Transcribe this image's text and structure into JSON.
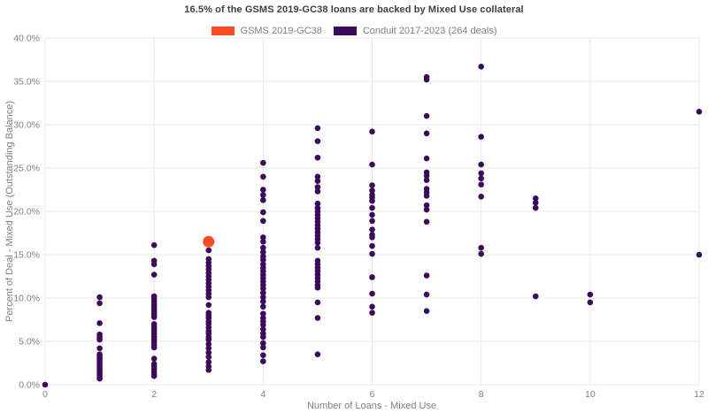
{
  "header": {
    "title": "16.5% of the GSMS 2019-GC38 loans are backed by Mixed Use collateral"
  },
  "legend": {
    "items": [
      {
        "label": "GSMS 2019-GC38",
        "color": "#fb4d23"
      },
      {
        "label": "Conduit 2017-2023 (264 deals)",
        "color": "#3b0a5a"
      }
    ]
  },
  "chart_data": {
    "type": "scatter",
    "title": "16.5% of the GSMS 2019-GC38 loans are backed by Mixed Use collateral",
    "xlabel": "Number of Loans - Mixed Use",
    "ylabel": "Percent of Deal - Mixed Use (Outstanding Balance)",
    "xlim": [
      0,
      12
    ],
    "ylim": [
      0,
      40
    ],
    "xticks": [
      0,
      2,
      4,
      6,
      8,
      10,
      12
    ],
    "yticks": [
      0,
      5,
      10,
      15,
      20,
      25,
      30,
      35,
      40
    ],
    "ytick_suffix": "%",
    "grid": true,
    "grid_color": "#e9e9e9",
    "legend_position": "top",
    "series": [
      {
        "name": "Conduit 2017-2023 (264 deals)",
        "color": "#3b0a5a",
        "marker_radius": 3.3,
        "points": [
          [
            0,
            0.0
          ],
          [
            1,
            10.1
          ],
          [
            1,
            9.4
          ],
          [
            1,
            7.1
          ],
          [
            1,
            5.8
          ],
          [
            1,
            5.5
          ],
          [
            1,
            5.2
          ],
          [
            1,
            4.2
          ],
          [
            1,
            3.5
          ],
          [
            1,
            3.2
          ],
          [
            1,
            3.0
          ],
          [
            1,
            2.8
          ],
          [
            1,
            2.6
          ],
          [
            1,
            2.4
          ],
          [
            1,
            2.2
          ],
          [
            1,
            2.0
          ],
          [
            1,
            1.8
          ],
          [
            1,
            1.6
          ],
          [
            1,
            1.4
          ],
          [
            1,
            1.2
          ],
          [
            1,
            1.0
          ],
          [
            1,
            0.7
          ],
          [
            2,
            16.1
          ],
          [
            2,
            14.3
          ],
          [
            2,
            13.9
          ],
          [
            2,
            12.7
          ],
          [
            2,
            10.2
          ],
          [
            2,
            9.9
          ],
          [
            2,
            9.6
          ],
          [
            2,
            9.3
          ],
          [
            2,
            9.0
          ],
          [
            2,
            8.7
          ],
          [
            2,
            8.4
          ],
          [
            2,
            8.1
          ],
          [
            2,
            7.8
          ],
          [
            2,
            7.0
          ],
          [
            2,
            6.7
          ],
          [
            2,
            6.4
          ],
          [
            2,
            6.1
          ],
          [
            2,
            5.8
          ],
          [
            2,
            5.5
          ],
          [
            2,
            5.2
          ],
          [
            2,
            4.9
          ],
          [
            2,
            4.6
          ],
          [
            2,
            4.3
          ],
          [
            2,
            3.0
          ],
          [
            2,
            2.4
          ],
          [
            2,
            2.1
          ],
          [
            2,
            1.8
          ],
          [
            2,
            1.5
          ],
          [
            2,
            1.2
          ],
          [
            2,
            1.0
          ],
          [
            3,
            15.5
          ],
          [
            3,
            14.5
          ],
          [
            3,
            14.1
          ],
          [
            3,
            13.7
          ],
          [
            3,
            13.3
          ],
          [
            3,
            12.9
          ],
          [
            3,
            12.5
          ],
          [
            3,
            12.1
          ],
          [
            3,
            11.7
          ],
          [
            3,
            11.3
          ],
          [
            3,
            10.9
          ],
          [
            3,
            10.5
          ],
          [
            3,
            10.1
          ],
          [
            3,
            9.2
          ],
          [
            3,
            8.3
          ],
          [
            3,
            8.0
          ],
          [
            3,
            7.7
          ],
          [
            3,
            7.3
          ],
          [
            3,
            7.0
          ],
          [
            3,
            6.6
          ],
          [
            3,
            6.2
          ],
          [
            3,
            5.9
          ],
          [
            3,
            5.5
          ],
          [
            3,
            5.2
          ],
          [
            3,
            4.7
          ],
          [
            3,
            4.2
          ],
          [
            3,
            3.7
          ],
          [
            3,
            3.2
          ],
          [
            3,
            2.6
          ],
          [
            3,
            2.1
          ],
          [
            3,
            1.7
          ],
          [
            4,
            25.6
          ],
          [
            4,
            24.0
          ],
          [
            4,
            22.5
          ],
          [
            4,
            21.9
          ],
          [
            4,
            21.3
          ],
          [
            4,
            19.9
          ],
          [
            4,
            18.9
          ],
          [
            4,
            17.0
          ],
          [
            4,
            16.5
          ],
          [
            4,
            15.8
          ],
          [
            4,
            15.3
          ],
          [
            4,
            14.8
          ],
          [
            4,
            14.4
          ],
          [
            4,
            13.9
          ],
          [
            4,
            13.5
          ],
          [
            4,
            13.1
          ],
          [
            4,
            12.7
          ],
          [
            4,
            12.3
          ],
          [
            4,
            11.9
          ],
          [
            4,
            11.5
          ],
          [
            4,
            11.1
          ],
          [
            4,
            10.6
          ],
          [
            4,
            10.1
          ],
          [
            4,
            9.6
          ],
          [
            4,
            9.0
          ],
          [
            4,
            8.2
          ],
          [
            4,
            7.7
          ],
          [
            4,
            7.3
          ],
          [
            4,
            6.9
          ],
          [
            4,
            6.4
          ],
          [
            4,
            5.9
          ],
          [
            4,
            5.5
          ],
          [
            4,
            4.8
          ],
          [
            4,
            4.3
          ],
          [
            4,
            3.4
          ],
          [
            4,
            2.7
          ],
          [
            5,
            29.6
          ],
          [
            5,
            28.1
          ],
          [
            5,
            26.2
          ],
          [
            5,
            24.0
          ],
          [
            5,
            23.5
          ],
          [
            5,
            22.8
          ],
          [
            5,
            22.3
          ],
          [
            5,
            20.9
          ],
          [
            5,
            20.4
          ],
          [
            5,
            20.0
          ],
          [
            5,
            19.6
          ],
          [
            5,
            19.2
          ],
          [
            5,
            18.8
          ],
          [
            5,
            18.4
          ],
          [
            5,
            18.0
          ],
          [
            5,
            17.6
          ],
          [
            5,
            17.2
          ],
          [
            5,
            16.8
          ],
          [
            5,
            16.4
          ],
          [
            5,
            15.8
          ],
          [
            5,
            14.3
          ],
          [
            5,
            13.9
          ],
          [
            5,
            13.5
          ],
          [
            5,
            13.1
          ],
          [
            5,
            12.7
          ],
          [
            5,
            12.3
          ],
          [
            5,
            11.9
          ],
          [
            5,
            11.5
          ],
          [
            5,
            11.2
          ],
          [
            5,
            9.5
          ],
          [
            5,
            7.7
          ],
          [
            5,
            3.5
          ],
          [
            6,
            29.2
          ],
          [
            6,
            25.4
          ],
          [
            6,
            23.0
          ],
          [
            6,
            22.4
          ],
          [
            6,
            21.9
          ],
          [
            6,
            21.6
          ],
          [
            6,
            21.2
          ],
          [
            6,
            20.4
          ],
          [
            6,
            19.6
          ],
          [
            6,
            18.9
          ],
          [
            6,
            17.9
          ],
          [
            6,
            17.3
          ],
          [
            6,
            17.0
          ],
          [
            6,
            16.0
          ],
          [
            6,
            15.1
          ],
          [
            6,
            12.4
          ],
          [
            6,
            10.5
          ],
          [
            6,
            9.0
          ],
          [
            6,
            8.3
          ],
          [
            7,
            35.5
          ],
          [
            7,
            35.2
          ],
          [
            7,
            31.0
          ],
          [
            7,
            29.0
          ],
          [
            7,
            26.1
          ],
          [
            7,
            24.5
          ],
          [
            7,
            24.1
          ],
          [
            7,
            23.6
          ],
          [
            7,
            22.6
          ],
          [
            7,
            22.2
          ],
          [
            7,
            21.8
          ],
          [
            7,
            20.7
          ],
          [
            7,
            20.2
          ],
          [
            7,
            18.8
          ],
          [
            7,
            12.6
          ],
          [
            7,
            10.4
          ],
          [
            7,
            8.5
          ],
          [
            8,
            36.7
          ],
          [
            8,
            28.6
          ],
          [
            8,
            25.4
          ],
          [
            8,
            24.4
          ],
          [
            8,
            23.8
          ],
          [
            8,
            23.1
          ],
          [
            8,
            21.7
          ],
          [
            8,
            15.8
          ],
          [
            8,
            15.1
          ],
          [
            9,
            21.5
          ],
          [
            9,
            21.0
          ],
          [
            9,
            20.4
          ],
          [
            9,
            10.2
          ],
          [
            10,
            10.4
          ],
          [
            10,
            9.5
          ],
          [
            12,
            31.5
          ],
          [
            12,
            15.0
          ]
        ]
      },
      {
        "name": "GSMS 2019-GC38",
        "color": "#fb4d23",
        "marker_radius": 6.5,
        "points": [
          [
            3,
            16.5
          ]
        ]
      }
    ]
  }
}
